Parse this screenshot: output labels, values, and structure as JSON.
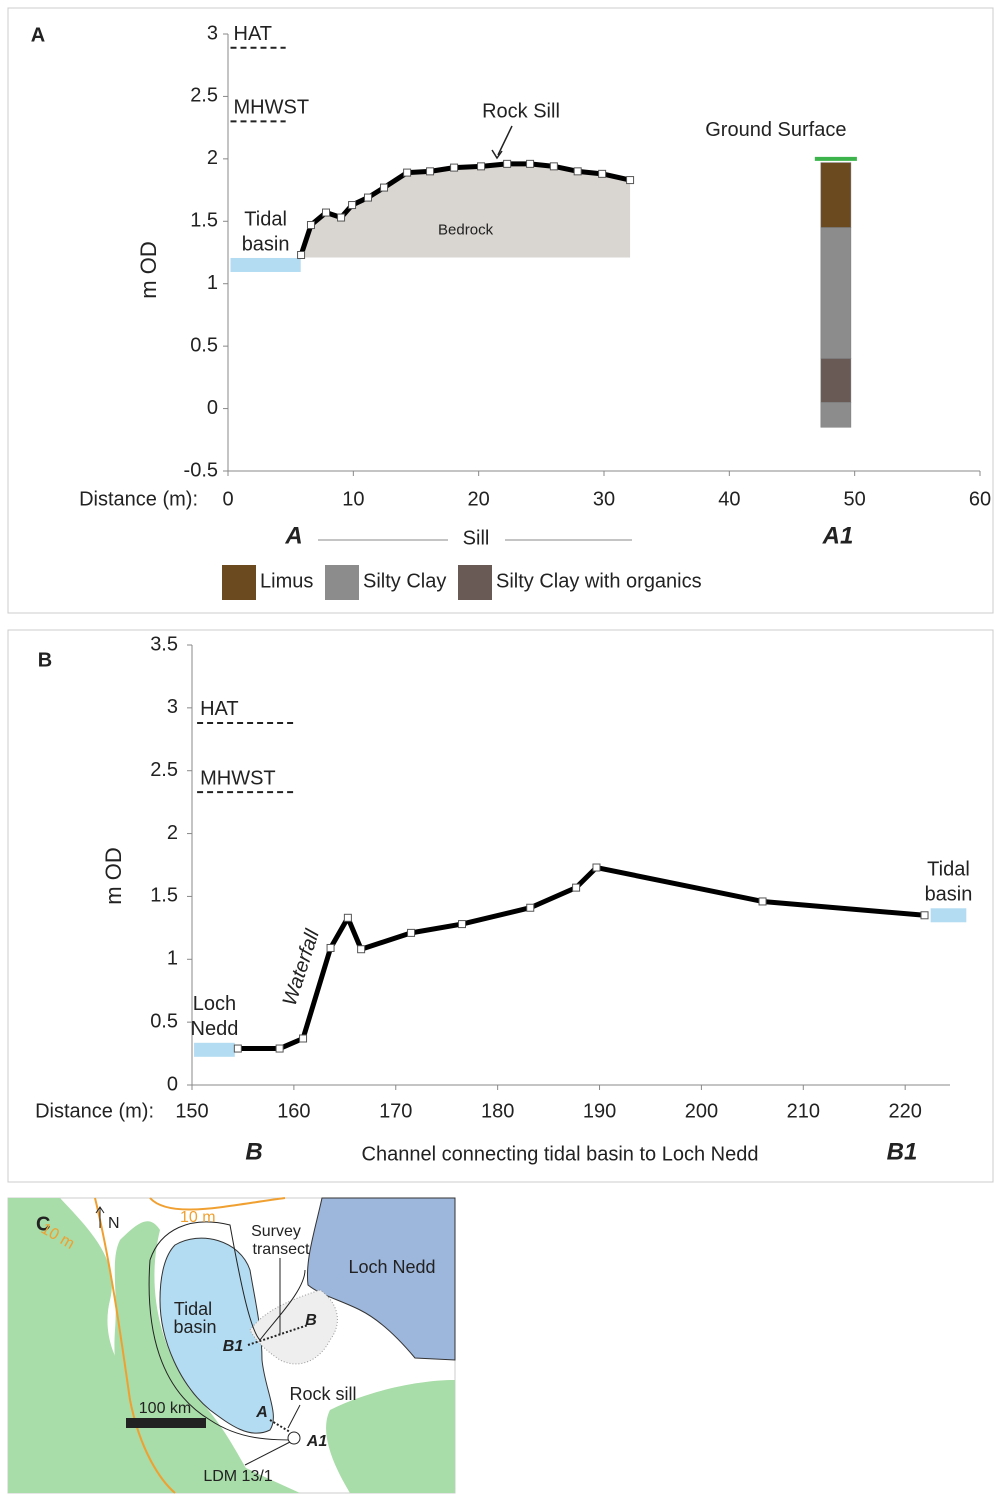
{
  "chart_data": [
    {
      "type": "line",
      "panel_label": "A",
      "ylabel": "m OD",
      "xlabel": "Distance (m):",
      "xlim": [
        0,
        60
      ],
      "xticks": [
        0,
        10,
        20,
        30,
        40,
        50,
        60
      ],
      "ylim": [
        -0.5,
        3
      ],
      "yticks": [
        -0.5,
        0,
        0.5,
        1,
        1.5,
        2,
        2.5,
        3
      ],
      "series": [
        {
          "color": "#000000",
          "x": [
            5.83,
            6.62,
            7.82,
            9.02,
            9.9,
            11.17,
            12.45,
            14.29,
            16.12,
            18.04,
            20.19,
            22.27,
            24.1,
            26.0,
            27.9,
            29.85,
            32.08
          ],
          "values": [
            1.23,
            1.47,
            1.57,
            1.53,
            1.63,
            1.69,
            1.77,
            1.89,
            1.9,
            1.93,
            1.94,
            1.96,
            1.96,
            1.94,
            1.9,
            1.88,
            1.83
          ]
        }
      ],
      "fill": {
        "label": "Bedrock",
        "color": "#d9d5d0",
        "base": 1.21
      },
      "reference_lines": [
        {
          "label": "HAT",
          "value": 2.89,
          "x": [
            0.2,
            4.6
          ]
        },
        {
          "label": "MHWST",
          "value": 2.3,
          "x": [
            0.2,
            4.6
          ]
        }
      ],
      "water": [
        {
          "label": [
            "Tidal",
            "basin"
          ],
          "x": [
            0.2,
            5.8
          ],
          "value": 1.15,
          "color": "#b3dcf2"
        }
      ],
      "arrow_annotation": "Rock Sill",
      "core": {
        "x": [
          47.3,
          49.7
        ],
        "surface": {
          "label": "Ground Surface",
          "value": 2.0,
          "color": "#3cb44b"
        },
        "layers": [
          {
            "top": 1.97,
            "bottom": 1.45,
            "color": "#6b4a1f"
          },
          {
            "top": 1.45,
            "bottom": 0.4,
            "color": "#8c8c8c"
          },
          {
            "top": 0.4,
            "bottom": 0.05,
            "color": "#6a5a55"
          },
          {
            "top": 0.05,
            "bottom": -0.15,
            "color": "#8c8c8c"
          }
        ]
      },
      "legend": [
        {
          "name": "Limus",
          "color": "#6b4a1f"
        },
        {
          "name": "Silty Clay",
          "color": "#8c8c8c"
        },
        {
          "name": "Silty Clay with organics",
          "color": "#6a5a55"
        }
      ],
      "footer": {
        "start": "A",
        "middle": "Sill",
        "end": "A1"
      }
    },
    {
      "type": "line",
      "panel_label": "B",
      "ylabel": "m OD",
      "xlabel": "Distance (m):",
      "xlim": [
        150,
        224.4
      ],
      "xticks": [
        150,
        160,
        170,
        180,
        190,
        200,
        210,
        220
      ],
      "ylim": [
        0,
        3.5
      ],
      "yticks": [
        0,
        0.5,
        1,
        1.5,
        2,
        2.5,
        3,
        3.5
      ],
      "series": [
        {
          "color": "#000000",
          "x": [
            154.5,
            158.6,
            160.9,
            163.6,
            165.3,
            166.6,
            171.5,
            176.5,
            183.2,
            187.7,
            189.7,
            206.0,
            221.9
          ],
          "values": [
            0.29,
            0.29,
            0.37,
            1.09,
            1.33,
            1.08,
            1.21,
            1.28,
            1.41,
            1.57,
            1.73,
            1.46,
            1.35
          ]
        }
      ],
      "reference_lines": [
        {
          "label": "HAT",
          "value": 2.88,
          "x": [
            150.5,
            160.0
          ]
        },
        {
          "label": "MHWST",
          "value": 2.33,
          "x": [
            150.5,
            160.0
          ]
        }
      ],
      "water": [
        {
          "label": [
            "Loch",
            "Nedd"
          ],
          "x": [
            150.2,
            154.2
          ],
          "value": 0.28,
          "color": "#b3dcf2"
        },
        {
          "label": [
            "Tidal",
            "basin"
          ],
          "x": [
            222.5,
            226.0
          ],
          "value": 1.35,
          "color": "#b3dcf2"
        }
      ],
      "slope_annotation": "Waterfall",
      "footer": {
        "start": "B",
        "middle": "Channel connecting tidal basin to Loch Nedd",
        "end": "B1"
      }
    }
  ],
  "map": {
    "panel_label": "C",
    "north": "N",
    "contours": [
      "10 m",
      "10 m"
    ],
    "survey_transect": [
      "Survey",
      "transect"
    ],
    "loch_nedd": "Loch Nedd",
    "tidal_basin": [
      "Tidal",
      "basin"
    ],
    "b": "B",
    "b1": "B1",
    "rock_sill": "Rock sill",
    "a": "A",
    "a1": "A1",
    "scale": "100 km",
    "core_site": "LDM 13/1"
  }
}
